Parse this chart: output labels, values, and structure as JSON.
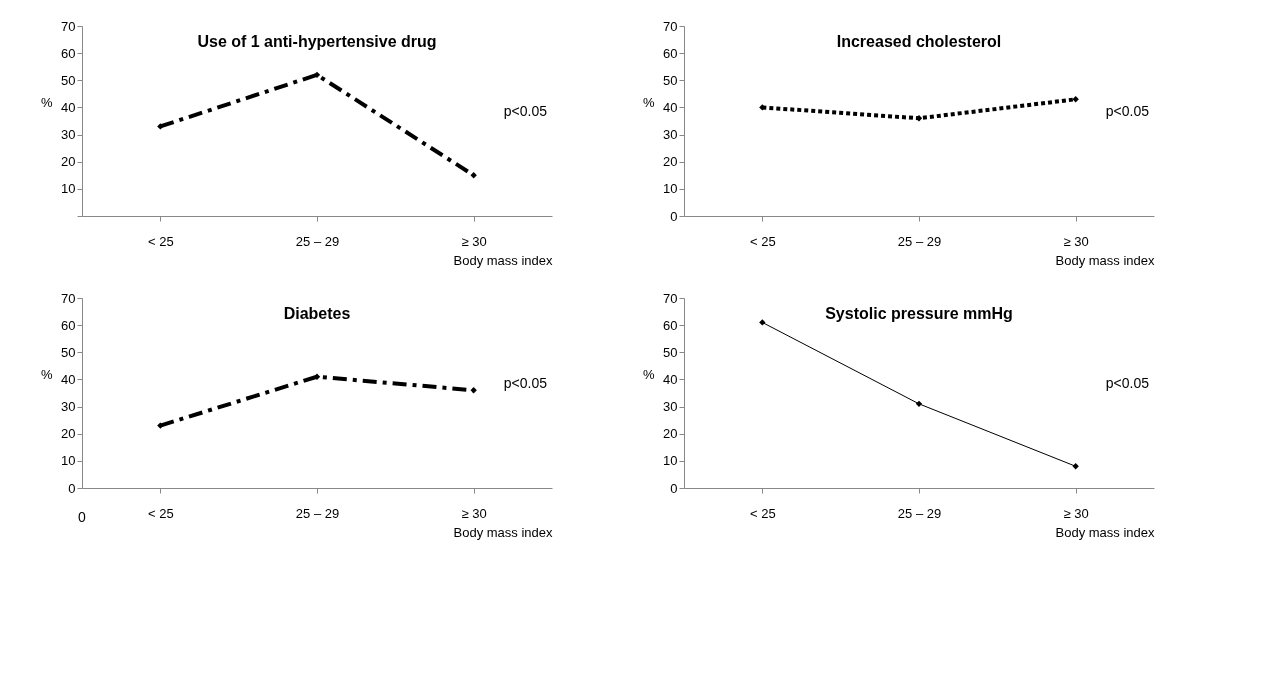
{
  "chart_data": [
    {
      "type": "line",
      "title": "Use of 1 anti-hypertensive drug",
      "xlabel": "Body mass index",
      "ylabel": "%",
      "categories": [
        "< 25",
        "25 – 29",
        "≥ 30"
      ],
      "series": [
        {
          "color": "#000000",
          "values": [
            33,
            52,
            15
          ]
        }
      ],
      "ylim": [
        0,
        70
      ],
      "yticks": [
        {
          "value": 0,
          "label": null
        },
        10,
        20,
        30,
        40,
        50,
        60,
        70
      ],
      "grid": false,
      "marker": "diamond",
      "line_style": "dashed",
      "annotations": [
        "p<0.05"
      ]
    },
    {
      "type": "line",
      "title": "Increased cholesterol",
      "xlabel": "Body mass index",
      "ylabel": "%",
      "categories": [
        "< 25",
        "25 – 29",
        "≥ 30"
      ],
      "series": [
        {
          "color": "#000000",
          "values": [
            40,
            36,
            43
          ]
        }
      ],
      "ylim": [
        0,
        70
      ],
      "yticks": [
        0,
        10,
        20,
        30,
        40,
        50,
        60,
        70
      ],
      "grid": false,
      "marker": "diamond",
      "line_style": "dotted",
      "annotations": [
        "p<0.05"
      ]
    },
    {
      "type": "line",
      "title": "Diabetes",
      "xlabel": "Body mass index",
      "ylabel": "%",
      "categories": [
        "< 25",
        "25 – 29",
        "≥ 30"
      ],
      "series": [
        {
          "color": "#000000",
          "values": [
            23,
            41,
            36
          ]
        }
      ],
      "ylim": [
        0,
        70
      ],
      "yticks": [
        0,
        10,
        20,
        30,
        40,
        50,
        60,
        70
      ],
      "grid": false,
      "marker": "diamond",
      "line_style": "dashed",
      "annotations": [
        "p<0.05",
        "0"
      ]
    },
    {
      "type": "line",
      "title": "Systolic pressure        mmHg",
      "xlabel": "Body mass index",
      "ylabel": "%",
      "categories": [
        "< 25",
        "25 – 29",
        "≥ 30"
      ],
      "series": [
        {
          "color": "#000000",
          "values": [
            61,
            31,
            8
          ]
        }
      ],
      "ylim": [
        0,
        70
      ],
      "yticks": [
        0,
        10,
        20,
        30,
        40,
        50,
        60,
        70
      ],
      "grid": false,
      "marker": "diamond",
      "line_style": "solid",
      "annotations": [
        "p<0.05"
      ]
    }
  ]
}
